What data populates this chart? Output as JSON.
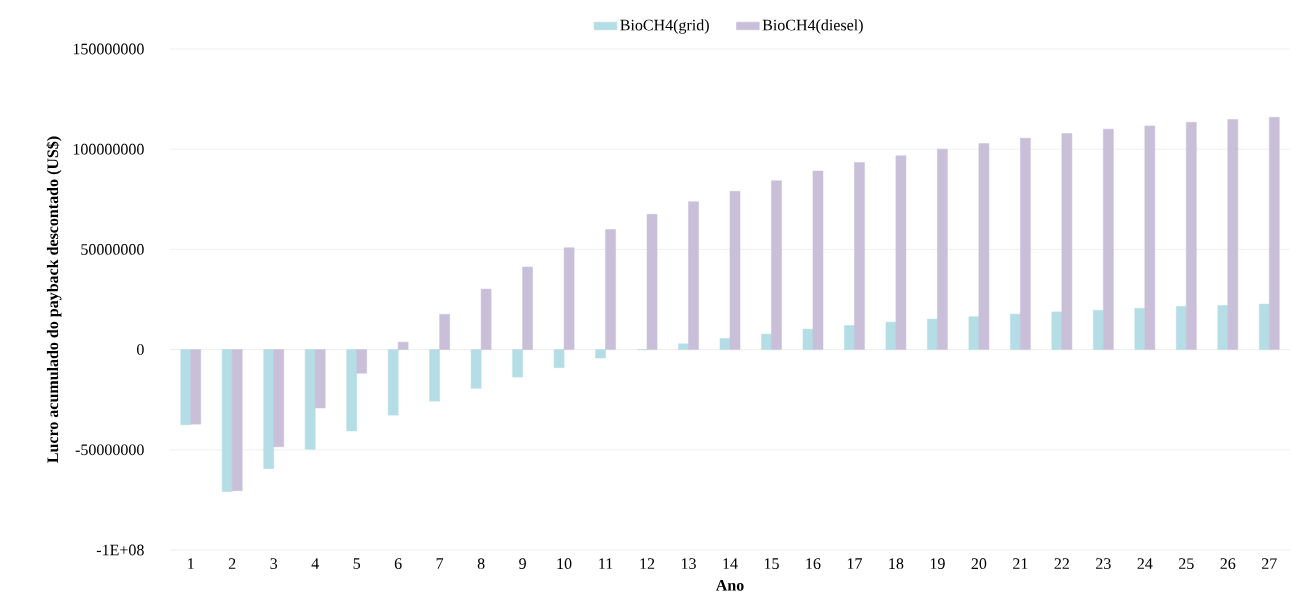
{
  "chart_data": {
    "type": "bar",
    "xlabel": "Ano",
    "ylabel": "Lucro acumulado do payback descontado (US$)",
    "categories": [
      "1",
      "2",
      "3",
      "4",
      "5",
      "6",
      "7",
      "8",
      "9",
      "10",
      "11",
      "12",
      "13",
      "14",
      "15",
      "16",
      "17",
      "18",
      "19",
      "20",
      "21",
      "22",
      "23",
      "24",
      "25",
      "26",
      "27"
    ],
    "series": [
      {
        "name": "BioCH4(grid)",
        "color": "#b4dde5",
        "values": [
          -37500000,
          -70800000,
          -59400000,
          -49700000,
          -40600000,
          -32700000,
          -25700000,
          -19300000,
          -13700000,
          -9000000,
          -4200000,
          0,
          2900000,
          5600000,
          7700000,
          10200000,
          12000000,
          13700000,
          15200000,
          16400000,
          17700000,
          18800000,
          19600000,
          20600000,
          21600000,
          22000000,
          22700000
        ]
      },
      {
        "name": "BioCH4(diesel)",
        "color": "#c9bfd9",
        "values": [
          -37200000,
          -70400000,
          -48500000,
          -29100000,
          -11800000,
          3700000,
          17600000,
          30200000,
          41200000,
          50800000,
          59900000,
          67500000,
          73800000,
          79000000,
          84300000,
          89100000,
          93400000,
          96700000,
          100000000,
          102800000,
          105500000,
          107800000,
          110000000,
          111600000,
          113400000,
          114800000,
          115900000
        ]
      }
    ],
    "ylim": [
      -100000000,
      150000000
    ],
    "yticks": [
      {
        "value": -100000000,
        "label": "-1E+08"
      },
      -50000000,
      0,
      50000000,
      100000000,
      150000000
    ],
    "grid": "y",
    "legend": "top"
  }
}
